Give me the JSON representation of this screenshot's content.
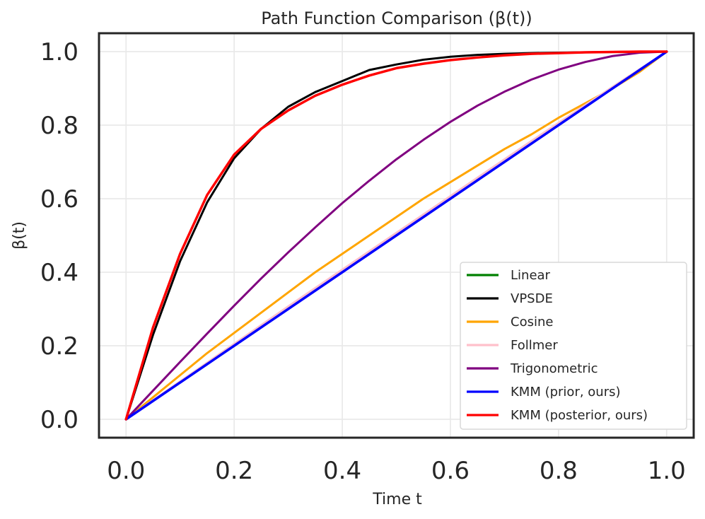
{
  "chart_data": {
    "type": "line",
    "title": "Path Function Comparison (β(t))",
    "xlabel": "Time t",
    "ylabel": "β(t)",
    "xlim": [
      -0.05,
      1.05
    ],
    "ylim": [
      -0.05,
      1.05
    ],
    "xticks": [
      "0.0",
      "0.2",
      "0.4",
      "0.6",
      "0.8",
      "1.0"
    ],
    "yticks": [
      "0.0",
      "0.2",
      "0.4",
      "0.6",
      "0.8",
      "1.0"
    ],
    "grid": true,
    "legend_position": "lower-right",
    "x": [
      0.0,
      0.05,
      0.1,
      0.15,
      0.2,
      0.25,
      0.3,
      0.35,
      0.4,
      0.45,
      0.5,
      0.55,
      0.6,
      0.65,
      0.7,
      0.75,
      0.8,
      0.85,
      0.9,
      0.95,
      1.0
    ],
    "series": [
      {
        "name": "Linear",
        "color": "#008000",
        "values": [
          0.0,
          0.05,
          0.1,
          0.15,
          0.2,
          0.25,
          0.3,
          0.35,
          0.4,
          0.45,
          0.5,
          0.55,
          0.6,
          0.65,
          0.7,
          0.75,
          0.8,
          0.85,
          0.9,
          0.95,
          1.0
        ]
      },
      {
        "name": "VPSDE",
        "color": "#000000",
        "values": [
          0.0,
          0.23,
          0.43,
          0.59,
          0.71,
          0.79,
          0.85,
          0.89,
          0.92,
          0.95,
          0.965,
          0.978,
          0.986,
          0.991,
          0.994,
          0.996,
          0.997,
          0.998,
          0.999,
          1.0,
          1.0
        ]
      },
      {
        "name": "Cosine",
        "color": "#FFA500",
        "values": [
          0.0,
          0.06,
          0.12,
          0.18,
          0.235,
          0.29,
          0.345,
          0.4,
          0.45,
          0.5,
          0.55,
          0.6,
          0.645,
          0.69,
          0.735,
          0.775,
          0.82,
          0.86,
          0.9,
          0.945,
          1.0
        ]
      },
      {
        "name": "Follmer",
        "color": "#FFC0CB",
        "values": [
          0.0,
          0.052,
          0.103,
          0.154,
          0.205,
          0.256,
          0.307,
          0.357,
          0.407,
          0.457,
          0.507,
          0.557,
          0.607,
          0.657,
          0.707,
          0.757,
          0.806,
          0.855,
          0.904,
          0.952,
          1.0
        ]
      },
      {
        "name": "Trigonometric",
        "color": "#800080",
        "values": [
          0.0,
          0.078,
          0.156,
          0.233,
          0.309,
          0.383,
          0.454,
          0.522,
          0.588,
          0.649,
          0.707,
          0.76,
          0.809,
          0.853,
          0.891,
          0.924,
          0.951,
          0.972,
          0.988,
          0.997,
          1.0
        ]
      },
      {
        "name": "KMM (prior, ours)",
        "color": "#0000FF",
        "values": [
          0.0,
          0.05,
          0.1,
          0.15,
          0.2,
          0.25,
          0.3,
          0.35,
          0.4,
          0.45,
          0.5,
          0.55,
          0.6,
          0.65,
          0.7,
          0.75,
          0.8,
          0.85,
          0.9,
          0.95,
          1.0
        ]
      },
      {
        "name": "KMM (posterior, ours)",
        "color": "#FF0000",
        "values": [
          0.0,
          0.25,
          0.45,
          0.61,
          0.72,
          0.79,
          0.84,
          0.88,
          0.91,
          0.935,
          0.955,
          0.967,
          0.977,
          0.984,
          0.99,
          0.994,
          0.996,
          0.998,
          0.999,
          1.0,
          1.0
        ]
      }
    ]
  }
}
